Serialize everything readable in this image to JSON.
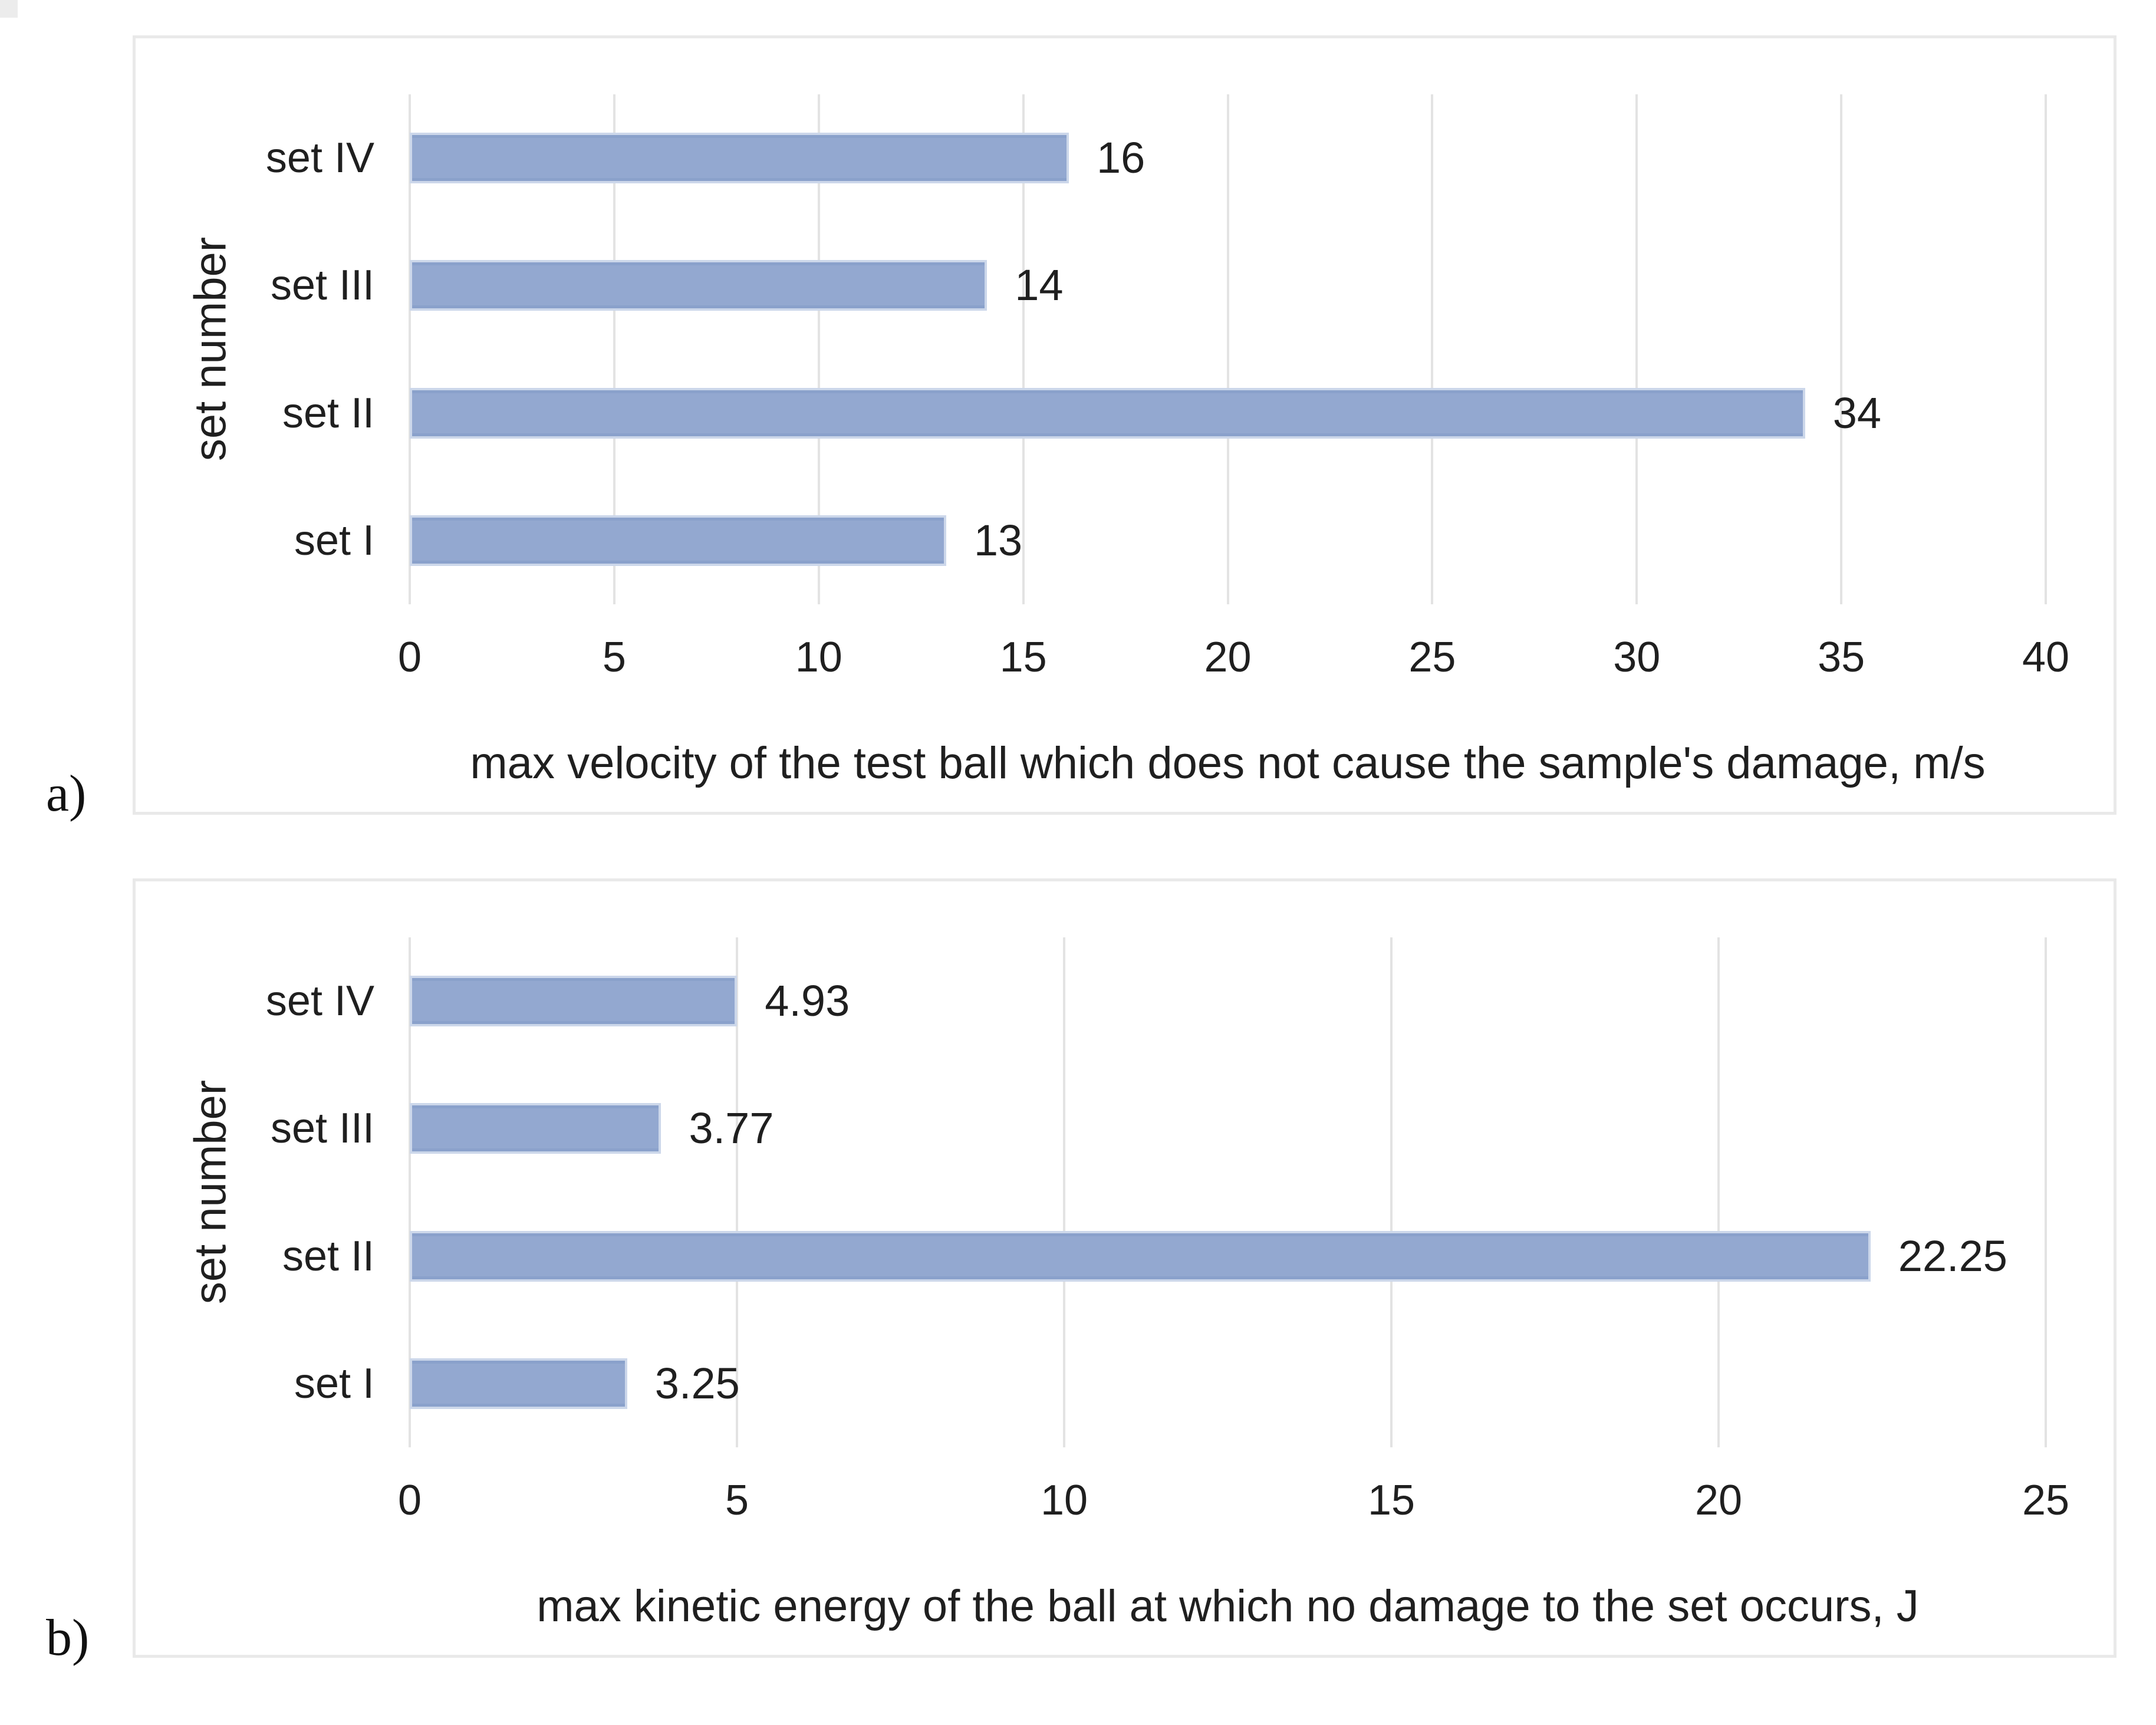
{
  "figure": {
    "panel_a_label": "a)",
    "panel_b_label": "b)"
  },
  "colors": {
    "bar_fill": "#93a8d0",
    "bar_edge_light": "#ccd7ea",
    "bar_edge_dark": "#8aa1cb",
    "gridline": "#e3e3e3",
    "panel_border": "#e9e9e9",
    "text": "#1f1f1f"
  },
  "chart_data": [
    {
      "id": "a",
      "type": "bar",
      "orientation": "horizontal",
      "categories": [
        "set I",
        "set II",
        "set III",
        "set IV"
      ],
      "category_order": "bottom-to-top",
      "values": [
        13,
        34,
        14,
        16
      ],
      "data_labels": [
        "13",
        "34",
        "14",
        "16"
      ],
      "title": "",
      "xlabel": "max velocity of the test ball which does not cause the sample's damage, m/s",
      "ylabel": "set number",
      "xlim": [
        0,
        40
      ],
      "xticks": [
        0,
        5,
        10,
        15,
        20,
        25,
        30,
        35,
        40
      ],
      "grid": true,
      "legend": "none"
    },
    {
      "id": "b",
      "type": "bar",
      "orientation": "horizontal",
      "categories": [
        "set I",
        "set II",
        "set III",
        "set IV"
      ],
      "category_order": "bottom-to-top",
      "values": [
        3.25,
        22.25,
        3.77,
        4.93
      ],
      "data_labels": [
        "3.25",
        "22.25",
        "3.77",
        "4.93"
      ],
      "title": "",
      "xlabel": "max kinetic energy of the ball at which no damage to the set occurs, J",
      "ylabel": "set number",
      "xlim": [
        0,
        25
      ],
      "xticks": [
        0,
        5,
        10,
        15,
        20,
        25
      ],
      "grid": true,
      "legend": "none"
    }
  ]
}
